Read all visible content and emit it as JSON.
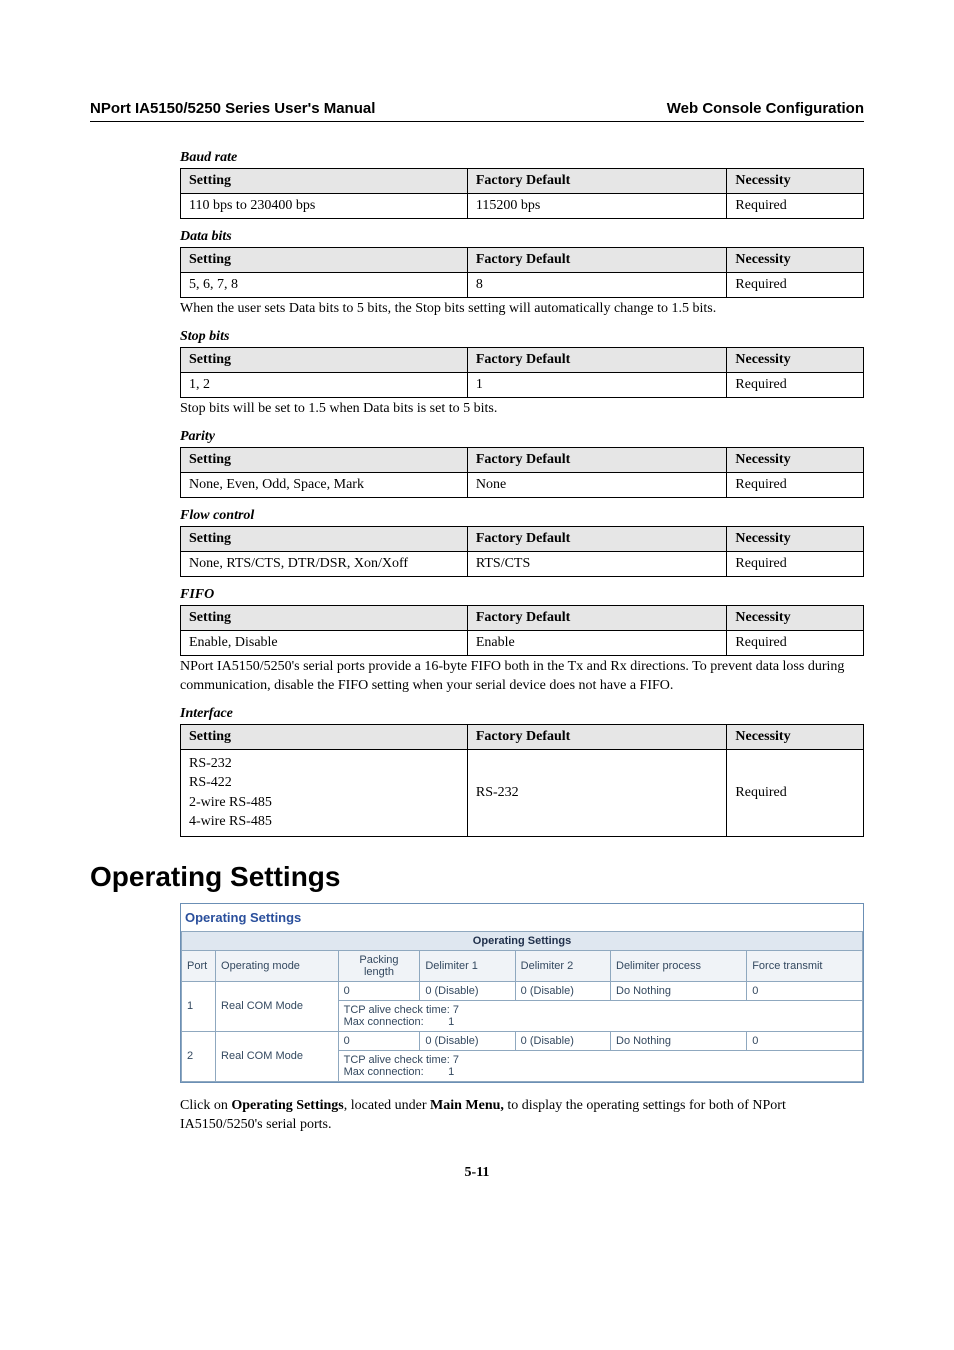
{
  "header": {
    "left": "NPort IA5150/5250 Series User's Manual",
    "right": "Web Console Configuration"
  },
  "sections": [
    {
      "label": "Baud rate",
      "headers": [
        "Setting",
        "Factory Default",
        "Necessity"
      ],
      "row": [
        "110 bps to 230400 bps",
        "115200 bps",
        "Required"
      ],
      "note": ""
    },
    {
      "label": "Data bits",
      "headers": [
        "Setting",
        "Factory Default",
        "Necessity"
      ],
      "row": [
        "5, 6, 7, 8",
        "8",
        "Required"
      ],
      "note": "When the user sets Data bits to 5 bits, the Stop bits setting will automatically change to 1.5 bits."
    },
    {
      "label": "Stop bits",
      "headers": [
        "Setting",
        "Factory Default",
        "Necessity"
      ],
      "row": [
        "1, 2",
        "1",
        "Required"
      ],
      "note": "Stop bits will be set to 1.5 when Data bits is set to 5 bits."
    },
    {
      "label": "Parity",
      "headers": [
        "Setting",
        "Factory Default",
        "Necessity"
      ],
      "row": [
        "None, Even, Odd, Space, Mark",
        "None",
        "Required"
      ],
      "note": ""
    },
    {
      "label": "Flow control",
      "headers": [
        "Setting",
        "Factory Default",
        "Necessity"
      ],
      "row": [
        "None, RTS/CTS, DTR/DSR, Xon/Xoff",
        "RTS/CTS",
        "Required"
      ],
      "note": ""
    },
    {
      "label": "FIFO",
      "headers": [
        "Setting",
        "Factory Default",
        "Necessity"
      ],
      "row": [
        "Enable, Disable",
        "Enable",
        "Required"
      ],
      "note": "NPort IA5150/5250's serial ports provide a 16-byte FIFO both in the Tx and Rx directions. To prevent data loss during communication, disable the FIFO setting when your serial device does not have a FIFO."
    },
    {
      "label": "Interface",
      "headers": [
        "Setting",
        "Factory Default",
        "Necessity"
      ],
      "row": [
        "RS-232\nRS-422\n2-wire RS-485\n4-wire RS-485",
        "RS-232",
        "Required"
      ],
      "note": ""
    }
  ],
  "opSettingsHeading": "Operating Settings",
  "screenshot": {
    "title": "Operating Settings",
    "caption": "Operating Settings",
    "columns": [
      "Port",
      "Operating mode",
      "Packing length",
      "Delimiter 1",
      "Delimiter 2",
      "Delimiter process",
      "Force transmit"
    ],
    "rows": [
      {
        "port": "1",
        "mode": "Real COM Mode",
        "packing": "0",
        "del1": "0 (Disable)",
        "del2": "0 (Disable)",
        "proc": "Do Nothing",
        "force": "0",
        "extra": "TCP alive check time: 7\nMax connection:        1"
      },
      {
        "port": "2",
        "mode": "Real COM Mode",
        "packing": "0",
        "del1": "0 (Disable)",
        "del2": "0 (Disable)",
        "proc": "Do Nothing",
        "force": "0",
        "extra": "TCP alive check time: 7\nMax connection:        1"
      }
    ]
  },
  "bottom_paragraph": {
    "pre": "Click on ",
    "b1": "Operating Settings",
    "mid": ", located under ",
    "b2": "Main Menu,",
    "post": " to display the operating settings for both of NPort IA5150/5250's serial ports."
  },
  "page_number": "5-11"
}
